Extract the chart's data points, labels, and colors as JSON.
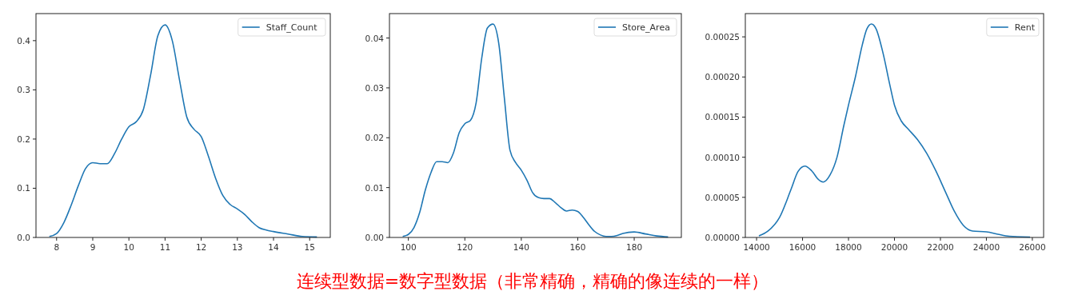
{
  "chart_data": [
    {
      "type": "line",
      "xlim": [
        7.43,
        15.57
      ],
      "ylim": [
        0,
        0.455
      ],
      "xticks": [
        8,
        9,
        10,
        11,
        12,
        13,
        14,
        15
      ],
      "yticks": [
        {
          "value": 0,
          "label": "0.0"
        },
        0.1,
        0.2,
        0.3,
        0.4
      ],
      "legend": "top right",
      "grid": false,
      "series": [
        {
          "name": "Staff_Count",
          "color": "#1f77b4",
          "x": [
            7.8,
            8.0,
            8.2,
            8.4,
            8.6,
            8.8,
            9.0,
            9.2,
            9.4,
            9.6,
            9.8,
            10.0,
            10.2,
            10.4,
            10.6,
            10.8,
            11.0,
            11.2,
            11.4,
            11.6,
            11.8,
            12.0,
            12.2,
            12.4,
            12.6,
            12.8,
            13.0,
            13.2,
            13.4,
            13.6,
            13.8,
            14.0,
            14.4,
            14.8,
            15.2
          ],
          "values": [
            0.002,
            0.008,
            0.03,
            0.065,
            0.105,
            0.14,
            0.152,
            0.15,
            0.15,
            0.17,
            0.2,
            0.225,
            0.235,
            0.26,
            0.33,
            0.41,
            0.432,
            0.4,
            0.32,
            0.245,
            0.22,
            0.205,
            0.165,
            0.12,
            0.085,
            0.067,
            0.058,
            0.047,
            0.032,
            0.02,
            0.015,
            0.012,
            0.007,
            0.002,
            0.001
          ]
        }
      ]
    },
    {
      "type": "line",
      "xlim": [
        93.3,
        196.7
      ],
      "ylim": [
        0,
        0.0449
      ],
      "xticks": [
        100,
        120,
        140,
        160,
        180
      ],
      "yticks": [
        {
          "value": 0,
          "label": "0.00"
        },
        0.01,
        0.02,
        0.03,
        0.04
      ],
      "legend": "top right",
      "grid": false,
      "annotations": [
        "连续型数据=数字型数据（非常精确，精确的像连续的一样）"
      ],
      "series": [
        {
          "name": "Store_Area",
          "color": "#1f77b4",
          "x": [
            98,
            100,
            102,
            104,
            106,
            108,
            110,
            112,
            114,
            116,
            118,
            120,
            122,
            124,
            126,
            128,
            130,
            132,
            134,
            136,
            138,
            140,
            142,
            144,
            146,
            148,
            150,
            152,
            154,
            156,
            158,
            160,
            162,
            164,
            166,
            168,
            170,
            172,
            174,
            176,
            180,
            184,
            188,
            192
          ],
          "values": [
            0.0002,
            0.0006,
            0.002,
            0.005,
            0.0095,
            0.013,
            0.0152,
            0.0152,
            0.015,
            0.017,
            0.021,
            0.0228,
            0.0235,
            0.027,
            0.036,
            0.042,
            0.0428,
            0.039,
            0.028,
            0.0175,
            0.015,
            0.0135,
            0.0115,
            0.009,
            0.008,
            0.0078,
            0.0078,
            0.007,
            0.006,
            0.0053,
            0.0055,
            0.0052,
            0.004,
            0.0025,
            0.0012,
            0.0005,
            0.0002,
            0.0002,
            0.0004,
            0.0008,
            0.0011,
            0.0007,
            0.0003,
            0.0001
          ]
        }
      ]
    },
    {
      "type": "line",
      "xlim": [
        13510,
        26490
      ],
      "ylim": [
        0,
        0.000279
      ],
      "xticks": [
        14000,
        16000,
        18000,
        20000,
        22000,
        24000,
        26000
      ],
      "yticks": [
        {
          "value": 0,
          "label": "0.00000"
        },
        {
          "value": 5e-05,
          "label": "0.00005"
        },
        {
          "value": 0.0001,
          "label": "0.00010"
        },
        {
          "value": 0.00015,
          "label": "0.00015"
        },
        {
          "value": 0.0002,
          "label": "0.00020"
        },
        {
          "value": 0.00025,
          "label": "0.00025"
        }
      ],
      "legend": "top right",
      "grid": false,
      "series": [
        {
          "name": "Rent",
          "color": "#1f77b4",
          "x": [
            14100,
            14500,
            15000,
            15500,
            15800,
            16100,
            16400,
            16700,
            16900,
            17200,
            17500,
            17800,
            18000,
            18300,
            18600,
            18800,
            19000,
            19200,
            19500,
            19800,
            20000,
            20300,
            20600,
            21000,
            21400,
            21800,
            22200,
            22600,
            23000,
            23400,
            24000,
            24500,
            25000,
            25900
          ],
          "values": [
            2e-06,
            8e-06,
            2.5e-05,
            6e-05,
            8.2e-05,
            8.9e-05,
            8.3e-05,
            7.2e-05,
            6.9e-05,
            7.8e-05,
            0.0001,
            0.00014,
            0.000165,
            0.0002,
            0.00024,
            0.00026,
            0.000266,
            0.00026,
            0.00023,
            0.00019,
            0.000165,
            0.000145,
            0.000135,
            0.000122,
            0.000105,
            8.3e-05,
            5.8e-05,
            3.3e-05,
            1.5e-05,
            8e-06,
            7e-06,
            4e-06,
            1.5e-06,
            5e-07
          ]
        }
      ]
    }
  ]
}
